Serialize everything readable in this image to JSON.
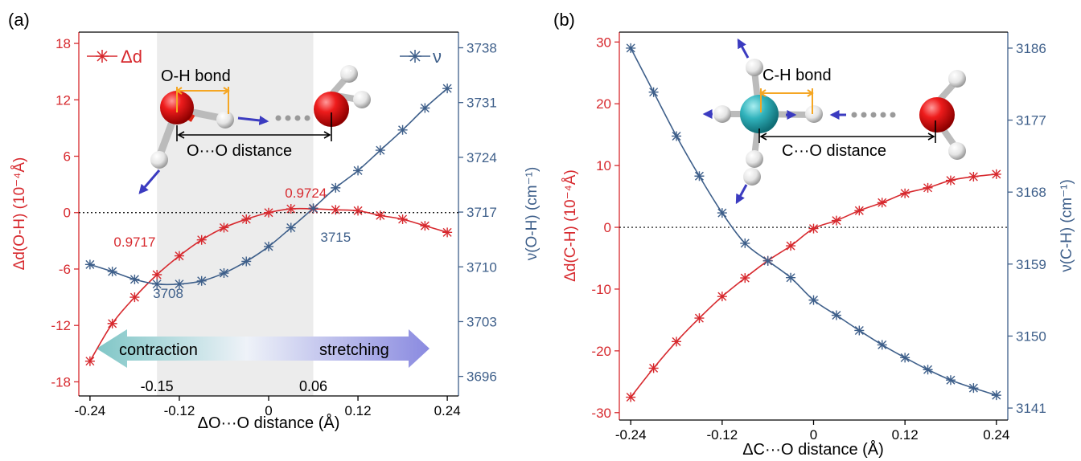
{
  "colors": {
    "red": "#d7292e",
    "blue": "#3e5f8a",
    "shade": "#ececec",
    "teal": "#7fc6c6",
    "violet": "#8a8ae0"
  },
  "chart_data": [
    {
      "type": "line",
      "panel_label": "(a)",
      "xlabel": "ΔO···O distance (Å)",
      "ylabel_left": "Δd(O-H) (10⁻⁴Å)",
      "ylabel_right": "ν(O-H) (cm⁻¹)",
      "xlim": [
        -0.255,
        0.255
      ],
      "ylim_left": [
        -19.5,
        19.2
      ],
      "ylim_right": [
        3693.5,
        3740
      ],
      "xticks": [
        -0.24,
        -0.12,
        0,
        0.12,
        0.24
      ],
      "xtick_labels": [
        "-0.24",
        "-0.12",
        "0",
        "0.12",
        "0.24"
      ],
      "yticks_left": [
        -18,
        -12,
        -6,
        0,
        6,
        12,
        18
      ],
      "ytick_labels_left": [
        "-18",
        "-12",
        "-6",
        "0",
        "6",
        "12",
        "18"
      ],
      "yticks_right": [
        3696,
        3703,
        3710,
        3717,
        3724,
        3731,
        3738
      ],
      "ytick_labels_right": [
        "3696",
        "3703",
        "3710",
        "3717",
        "3724",
        "3731",
        "3738"
      ],
      "x": [
        -0.24,
        -0.21,
        -0.18,
        -0.15,
        -0.12,
        -0.09,
        -0.06,
        -0.03,
        0.0,
        0.03,
        0.06,
        0.09,
        0.12,
        0.15,
        0.18,
        0.21,
        0.24
      ],
      "series": [
        {
          "name": "Δd",
          "axis": "left",
          "color": "#d7292e",
          "values": [
            -15.8,
            -11.8,
            -9.0,
            -6.6,
            -4.6,
            -2.9,
            -1.6,
            -0.7,
            0.0,
            0.4,
            0.4,
            0.3,
            0.2,
            -0.3,
            -0.7,
            -1.4,
            -2.1
          ]
        },
        {
          "name": "ν",
          "axis": "right",
          "color": "#3e5f8a",
          "values": [
            3710.3,
            3709.4,
            3708.4,
            3707.8,
            3707.8,
            3708.2,
            3709.2,
            3710.7,
            3712.6,
            3715.0,
            3717.5,
            3720.1,
            3722.3,
            3724.9,
            3727.5,
            3730.3,
            3732.8
          ]
        }
      ],
      "reference_line": {
        "axis": "left",
        "value": 0
      },
      "shaded_region": [
        -0.15,
        0.06
      ],
      "region_labels": [
        "-0.15",
        "0.06"
      ],
      "annotations": [
        {
          "text": "0.9717",
          "x": -0.18,
          "y": -3.6,
          "axis": "left",
          "color": "#d7292e"
        },
        {
          "text": "0.9724",
          "x": 0.05,
          "y": 1.6,
          "axis": "left",
          "color": "#d7292e"
        },
        {
          "text": "3708",
          "x": -0.135,
          "y": 3706.0,
          "axis": "right",
          "color": "#3e5f8a"
        },
        {
          "text": "3715",
          "x": 0.09,
          "y": 3713.2,
          "axis": "right",
          "color": "#3e5f8a"
        }
      ],
      "arrow_labels": {
        "left": "contraction",
        "right": "stretching"
      },
      "inset_labels": {
        "bond": "O-H bond",
        "distance": "O···O distance"
      }
    },
    {
      "type": "line",
      "panel_label": "(b)",
      "xlabel": "ΔC···O distance (Å)",
      "ylabel_left": "Δd(C-H) (10⁻⁴Å)",
      "ylabel_right": "ν(C-H) (cm⁻¹)",
      "xlim": [
        -0.255,
        0.255
      ],
      "ylim_left": [
        -31.2,
        31.6
      ],
      "ylim_right": [
        3139.5,
        3188
      ],
      "xticks": [
        -0.24,
        -0.12,
        0,
        0.12,
        0.24
      ],
      "xtick_labels": [
        "-0.24",
        "-0.12",
        "0",
        "0.12",
        "0.24"
      ],
      "yticks_left": [
        -30,
        -20,
        -10,
        0,
        10,
        20,
        30
      ],
      "ytick_labels_left": [
        "-30",
        "-20",
        "-10",
        "0",
        "10",
        "20",
        "30"
      ],
      "yticks_right": [
        3141,
        3150,
        3159,
        3168,
        3177,
        3186
      ],
      "ytick_labels_right": [
        "3141",
        "3150",
        "3159",
        "3168",
        "3177",
        "3186"
      ],
      "x": [
        -0.24,
        -0.21,
        -0.18,
        -0.15,
        -0.12,
        -0.09,
        -0.06,
        -0.03,
        0.0,
        0.03,
        0.06,
        0.09,
        0.12,
        0.15,
        0.18,
        0.21,
        0.24
      ],
      "series": [
        {
          "name": "Δd(C-H)",
          "axis": "left",
          "color": "#d7292e",
          "values": [
            -27.5,
            -22.8,
            -18.5,
            -14.7,
            -11.2,
            -8.2,
            -5.4,
            -3.0,
            -0.2,
            1.1,
            2.7,
            4.0,
            5.5,
            6.4,
            7.6,
            8.2,
            8.6
          ]
        },
        {
          "name": "ν(C-H)",
          "axis": "right",
          "color": "#3e5f8a",
          "values": [
            3186.0,
            3180.5,
            3175.0,
            3170.0,
            3165.4,
            3161.6,
            3159.4,
            3157.3,
            3154.5,
            3152.6,
            3150.7,
            3148.9,
            3147.3,
            3145.8,
            3144.5,
            3143.5,
            3142.6
          ]
        }
      ],
      "reference_line": {
        "axis": "left",
        "value": 0
      },
      "inset_labels": {
        "bond": "C-H bond",
        "distance": "C···O distance"
      }
    }
  ]
}
